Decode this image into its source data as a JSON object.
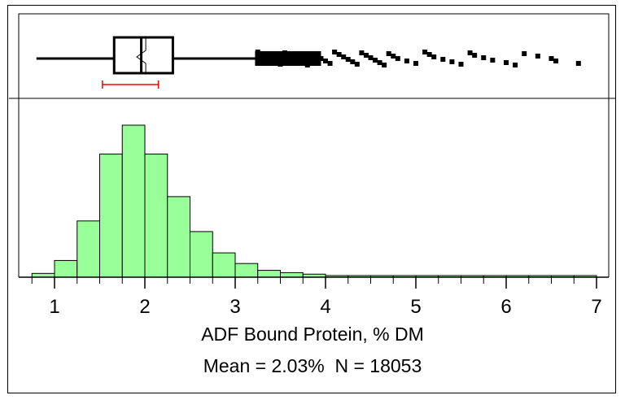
{
  "chart_data": {
    "type": "histogram",
    "xlabel": "ADF Bound Protein, % DM",
    "summary": {
      "mean": "Mean = 2.03%",
      "n": "N = 18053"
    },
    "xlim": [
      0.7,
      7.0
    ],
    "xticks": [
      1,
      2,
      3,
      4,
      5,
      6,
      7
    ],
    "tick_labels": [
      "1",
      "2",
      "3",
      "4",
      "5",
      "6",
      "7"
    ],
    "ylim_rel": [
      0,
      1
    ],
    "bin_width": 0.25,
    "bins": [
      {
        "x0": 0.75,
        "x1": 1.0,
        "freq": 0.025
      },
      {
        "x0": 1.0,
        "x1": 1.25,
        "freq": 0.11
      },
      {
        "x0": 1.25,
        "x1": 1.5,
        "freq": 0.37
      },
      {
        "x0": 1.5,
        "x1": 1.75,
        "freq": 0.81
      },
      {
        "x0": 1.75,
        "x1": 2.0,
        "freq": 1.0
      },
      {
        "x0": 2.0,
        "x1": 2.25,
        "freq": 0.81
      },
      {
        "x0": 2.25,
        "x1": 2.5,
        "freq": 0.53
      },
      {
        "x0": 2.5,
        "x1": 2.75,
        "freq": 0.3
      },
      {
        "x0": 2.75,
        "x1": 3.0,
        "freq": 0.16
      },
      {
        "x0": 3.0,
        "x1": 3.25,
        "freq": 0.09
      },
      {
        "x0": 3.25,
        "x1": 3.5,
        "freq": 0.045
      },
      {
        "x0": 3.5,
        "x1": 3.75,
        "freq": 0.03
      },
      {
        "x0": 3.75,
        "x1": 4.0,
        "freq": 0.02
      },
      {
        "x0": 4.0,
        "x1": 4.25,
        "freq": 0.008
      },
      {
        "x0": 4.25,
        "x1": 4.5,
        "freq": 0.006
      },
      {
        "x0": 4.5,
        "x1": 4.75,
        "freq": 0.005
      },
      {
        "x0": 4.75,
        "x1": 5.0,
        "freq": 0.004
      },
      {
        "x0": 5.0,
        "x1": 5.25,
        "freq": 0.004
      },
      {
        "x0": 5.25,
        "x1": 5.5,
        "freq": 0.003
      },
      {
        "x0": 5.5,
        "x1": 5.75,
        "freq": 0.003
      },
      {
        "x0": 5.75,
        "x1": 6.0,
        "freq": 0.003
      },
      {
        "x0": 6.0,
        "x1": 6.25,
        "freq": 0.002
      },
      {
        "x0": 6.25,
        "x1": 6.5,
        "freq": 0.002
      },
      {
        "x0": 6.5,
        "x1": 6.75,
        "freq": 0.002
      },
      {
        "x0": 6.75,
        "x1": 7.0,
        "freq": 0.002
      }
    ],
    "boxplot": {
      "whisker_low": 0.8,
      "q1": 1.66,
      "median": 1.96,
      "q3": 2.31,
      "whisker_high": 3.3,
      "notch": [
        1.91,
        2.01
      ],
      "mean_ci": [
        1.53,
        2.15
      ],
      "outliers": [
        3.25,
        3.3,
        3.35,
        3.4,
        3.45,
        3.5,
        3.55,
        3.6,
        3.65,
        3.7,
        3.75,
        3.8,
        3.85,
        3.9,
        3.95,
        4.0,
        4.05,
        4.1,
        4.15,
        4.2,
        4.25,
        4.3,
        4.35,
        4.4,
        4.45,
        4.5,
        4.55,
        4.6,
        4.65,
        4.7,
        4.75,
        4.8,
        4.9,
        5.0,
        5.1,
        5.15,
        5.2,
        5.3,
        5.4,
        5.5,
        5.6,
        5.65,
        5.75,
        5.85,
        6.0,
        6.1,
        6.2,
        6.35,
        6.5,
        6.55,
        6.8
      ]
    },
    "colors": {
      "bars": "#99ff99",
      "ci_bar": "#ff0000",
      "ink": "#000000"
    }
  }
}
